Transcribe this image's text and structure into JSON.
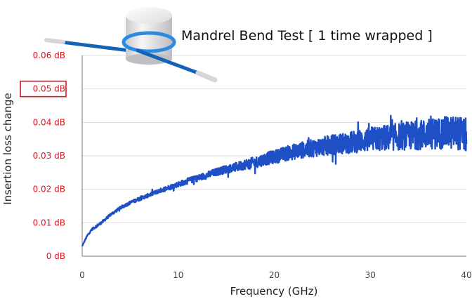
{
  "chart_data": {
    "type": "line",
    "title": "Mandrel Bend Test [ 1 time wrapped ]",
    "xlabel": "Frequency (GHz)",
    "ylabel": "Insertion loss change",
    "xlim": [
      0,
      40
    ],
    "ylim": [
      0,
      0.06
    ],
    "x_ticks": [
      "0",
      "10",
      "20",
      "30",
      "40"
    ],
    "y_ticks": [
      "0 dB",
      "0.01 dB",
      "0.02 dB",
      "0.03 dB",
      "0.04 dB",
      "0.05 dB",
      "0.06 dB"
    ],
    "highlighted_tick": "0.05 dB",
    "grid": "horizontal",
    "series": [
      {
        "color": "#1f4fc4",
        "x": [
          0,
          0.5,
          1,
          2,
          3,
          4,
          5,
          6,
          7,
          8,
          9,
          10,
          11,
          12,
          13,
          14,
          15,
          16,
          17,
          18,
          19,
          20,
          21,
          22,
          23,
          24,
          25,
          26,
          27,
          28,
          29,
          30,
          31,
          32,
          33,
          34,
          35,
          36,
          37,
          38,
          39,
          40
        ],
        "y": [
          0.003,
          0.006,
          0.008,
          0.01,
          0.0125,
          0.0145,
          0.016,
          0.0172,
          0.0183,
          0.0195,
          0.0205,
          0.0215,
          0.0225,
          0.0233,
          0.0242,
          0.0252,
          0.026,
          0.0266,
          0.0275,
          0.028,
          0.029,
          0.0297,
          0.0305,
          0.0312,
          0.0318,
          0.0323,
          0.0328,
          0.0333,
          0.0337,
          0.034,
          0.0345,
          0.0348,
          0.0352,
          0.0355,
          0.0357,
          0.036,
          0.0362,
          0.0365,
          0.0367,
          0.0369,
          0.037,
          0.036
        ],
        "noise": [
          0,
          0.0003,
          0.0004,
          0.0005,
          0.0005,
          0.0006,
          0.0006,
          0.0007,
          0.0007,
          0.0008,
          0.0009,
          0.001,
          0.0011,
          0.0012,
          0.0013,
          0.0014,
          0.0015,
          0.0017,
          0.0019,
          0.0021,
          0.0023,
          0.0025,
          0.0027,
          0.0029,
          0.0031,
          0.0033,
          0.0035,
          0.0037,
          0.0039,
          0.0041,
          0.0043,
          0.0045,
          0.0047,
          0.0049,
          0.0051,
          0.0053,
          0.0055,
          0.0057,
          0.0059,
          0.0061,
          0.0063,
          0.0065
        ]
      }
    ]
  },
  "illustration": {
    "name": "mandrel-with-wrapped-cable",
    "mandrel_color": "#e8e8ea",
    "ring_color": "#2a8be0",
    "cable_color": "#1563b8"
  }
}
